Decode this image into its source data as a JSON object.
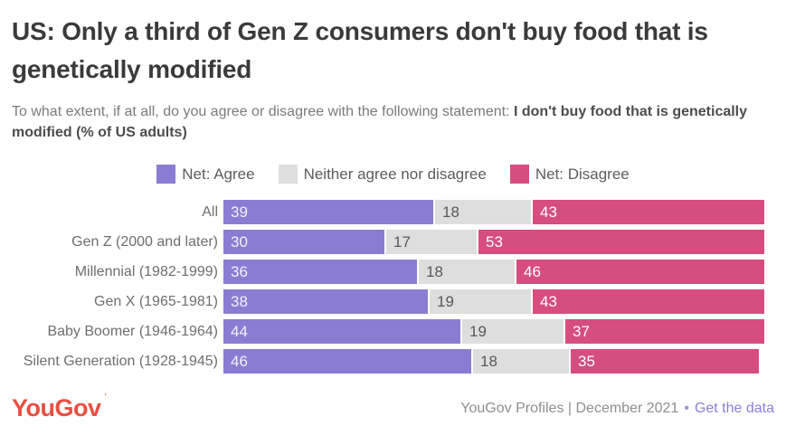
{
  "title": "US: Only a third of Gen Z consumers don't buy food that is genetically modified",
  "subtitle": {
    "regular": "To what extent, if at all, do you agree or disagree with the following statement: ",
    "bold": "I don't buy food that is genetically modified (% of US adults)"
  },
  "legend": {
    "agree": "Net: Agree",
    "neither": "Neither agree nor disagree",
    "disagree": "Net: Disagree"
  },
  "colors": {
    "agree": "#8b7cd3",
    "neither": "#dedede",
    "disagree": "#d64d7f",
    "logo_red": "#eb4e42",
    "link_purple": "#8b7fd9"
  },
  "chart_data": {
    "type": "bar",
    "stacked": true,
    "orientation": "horizontal",
    "title": "US: Only a third of Gen Z consumers don't buy food that is genetically modified",
    "categories": [
      "All",
      "Gen Z (2000 and later)",
      "Millennial (1982-1999)",
      "Gen X (1965-1981)",
      "Baby Boomer (1946-1964)",
      "Silent Generation (1928-1945)"
    ],
    "series": [
      {
        "name": "Net: Agree",
        "key": "agree",
        "values": [
          39,
          30,
          36,
          38,
          44,
          46
        ]
      },
      {
        "name": "Neither agree nor disagree",
        "key": "neither",
        "values": [
          18,
          17,
          18,
          19,
          19,
          18
        ]
      },
      {
        "name": "Net: Disagree",
        "key": "disagree",
        "values": [
          43,
          53,
          46,
          43,
          37,
          35
        ]
      }
    ],
    "xlim": [
      0,
      100
    ],
    "value_labels": true,
    "legend_position": "top",
    "grid": false
  },
  "footer": {
    "logo": "YouGov",
    "source": "YouGov Profiles | December 2021",
    "separator": "•",
    "link": "Get the data"
  }
}
